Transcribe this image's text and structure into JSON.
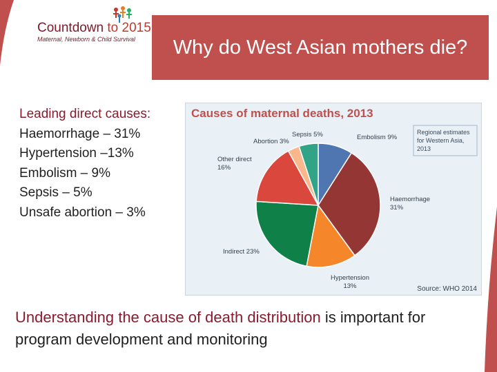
{
  "slide": {
    "logo": {
      "name_part1": "Countdown ",
      "name_part2": "to 2015",
      "tagline": "Maternal, Newborn & Child Survival"
    },
    "title": "Why do West Asian mothers die?",
    "leading_causes": {
      "heading": "Leading direct causes:",
      "items": [
        "Haemorrhage – 31%",
        "Hypertension –13%",
        "Embolism – 9%",
        "Sepsis – 5%",
        "Unsafe abortion – 3%"
      ]
    },
    "bottom_text": {
      "emphasis": "Understanding the cause of death distribution",
      "rest": " is important for program development and monitoring"
    }
  },
  "colors": {
    "title_bg": "#c0504d",
    "heading_text": "#8b1a2e",
    "chart_bg": "#e9f0f6",
    "chart_title": "#c0504d",
    "corner": "#c0504d"
  },
  "chart_data": {
    "type": "pie",
    "title": "Causes of maternal deaths, 2013",
    "legend_note": "Regional estimates for Western Asia, 2013",
    "source": "Source: WHO 2014",
    "slices": [
      {
        "name": "Embolism",
        "value": 9,
        "label": "Embolism 9%",
        "color": "#4f76b0"
      },
      {
        "name": "Haemorrhage",
        "value": 31,
        "label": "Haemorrhage 31%",
        "color": "#943634"
      },
      {
        "name": "Hypertension",
        "value": 13,
        "label": "Hypertension 13%",
        "color": "#f5862a"
      },
      {
        "name": "Indirect",
        "value": 23,
        "label": "Indirect 23%",
        "color": "#0e8048"
      },
      {
        "name": "Other direct",
        "value": 16,
        "label": "Other direct 16%",
        "color": "#d9473d"
      },
      {
        "name": "Abortion",
        "value": 3,
        "label": "Abortion 3%",
        "color": "#f8b88b"
      },
      {
        "name": "Sepsis",
        "value": 5,
        "label": "Sepsis 5%",
        "color": "#31a386"
      }
    ]
  }
}
